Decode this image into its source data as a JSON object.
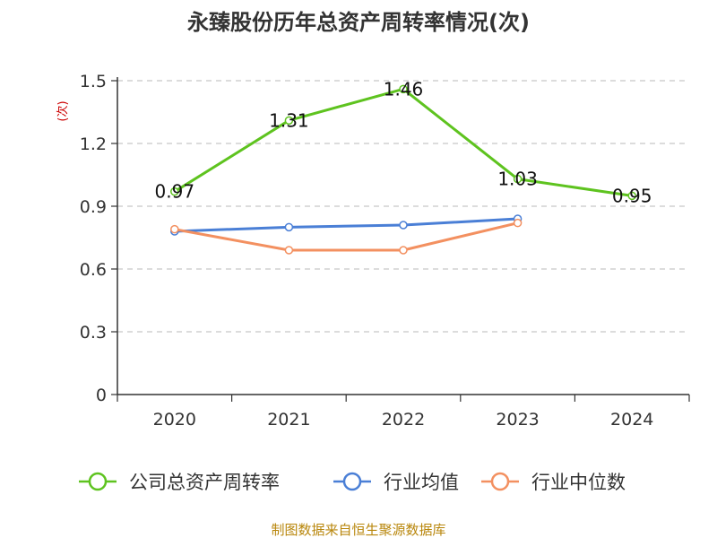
{
  "chart_data": {
    "type": "line",
    "title": "永臻股份历年总资产周转率情况(次)",
    "ylabel": "(次)",
    "xlabel": "",
    "categories": [
      "2020",
      "2021",
      "2022",
      "2023",
      "2024"
    ],
    "ylim": [
      0,
      1.5
    ],
    "yticks": [
      "0",
      "0.3",
      "0.6",
      "0.9",
      "1.2",
      "1.5"
    ],
    "ytick_values": [
      0,
      0.3,
      0.6,
      0.9,
      1.2,
      1.5
    ],
    "grid": true,
    "legend_position": "bottom",
    "series": [
      {
        "name": "公司总资产周转率",
        "color": "#5ec31f",
        "values": [
          0.97,
          1.31,
          1.46,
          1.03,
          0.95
        ],
        "labels": [
          "0.97",
          "1.31",
          "1.46",
          "1.03",
          "0.95"
        ]
      },
      {
        "name": "行业均值",
        "color": "#4a7fd6",
        "values": [
          0.78,
          0.8,
          0.81,
          0.84,
          null
        ]
      },
      {
        "name": "行业中位数",
        "color": "#f39060",
        "values": [
          0.79,
          0.69,
          0.69,
          0.82,
          null
        ]
      }
    ]
  },
  "footer": {
    "source": "制图数据来自恒生聚源数据库"
  }
}
